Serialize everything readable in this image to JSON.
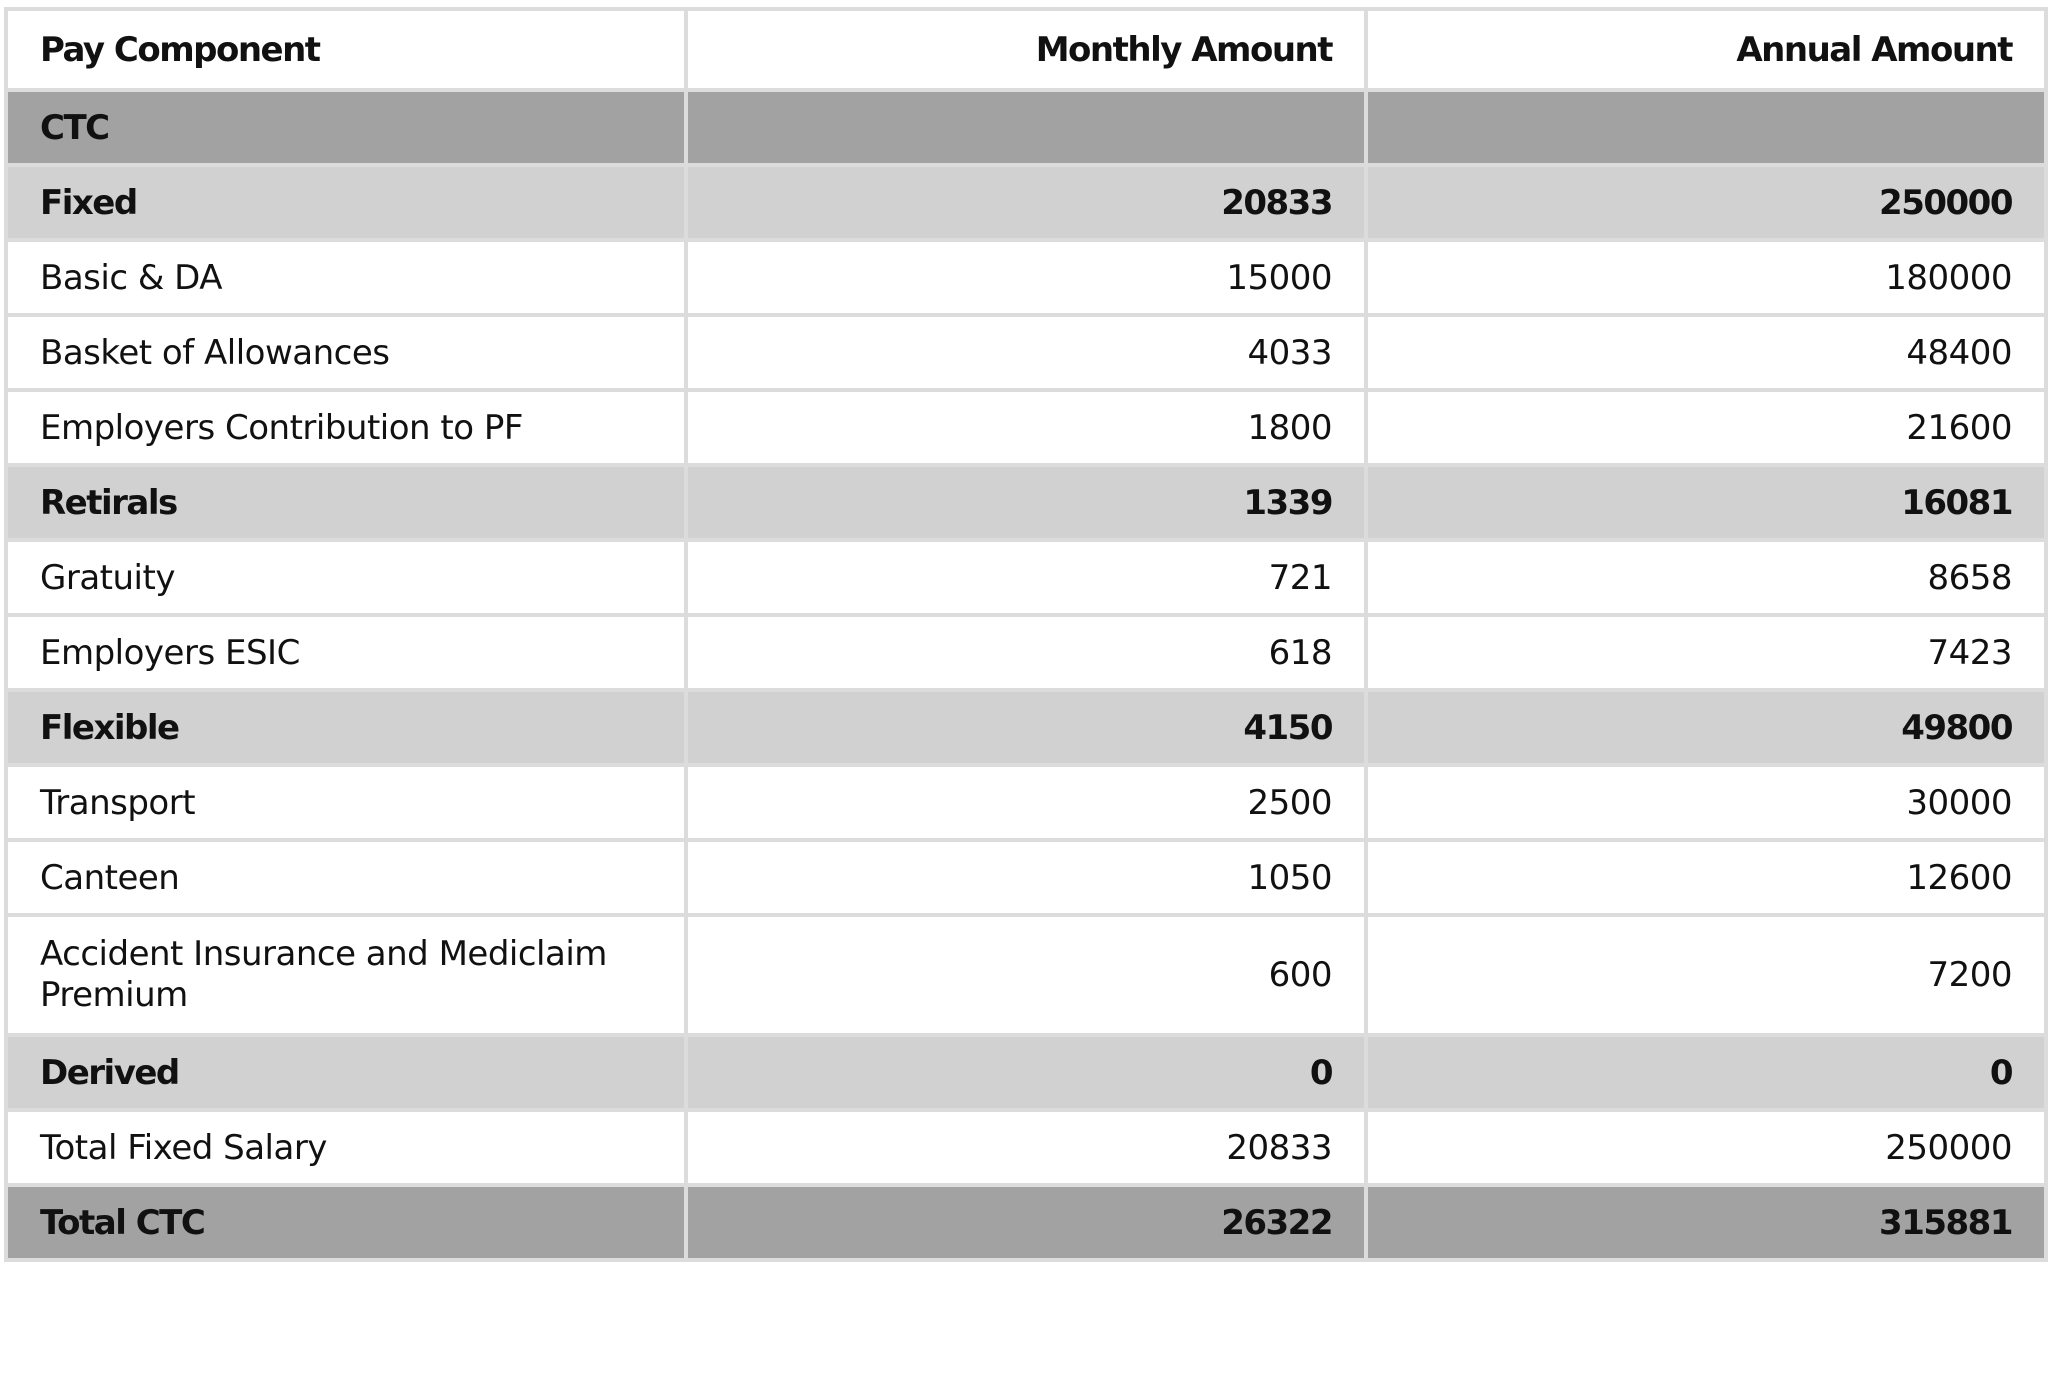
{
  "table": {
    "headers": [
      "Pay Component",
      "Monthly Amount",
      "Annual Amount"
    ],
    "rows": [
      {
        "label": "CTC",
        "monthly": "",
        "annual": "",
        "style": "head-dark"
      },
      {
        "label": "Fixed",
        "monthly": "20833",
        "annual": "250000",
        "style": "head-light"
      },
      {
        "label": "Basic & DA",
        "monthly": "15000",
        "annual": "180000",
        "style": "body"
      },
      {
        "label": "Basket of Allowances",
        "monthly": "4033",
        "annual": "48400",
        "style": "body"
      },
      {
        "label": "Employers Contribution to PF",
        "monthly": "1800",
        "annual": "21600",
        "style": "body"
      },
      {
        "label": "Retirals",
        "monthly": "1339",
        "annual": "16081",
        "style": "head-light"
      },
      {
        "label": "Gratuity",
        "monthly": "721",
        "annual": "8658",
        "style": "body"
      },
      {
        "label": "Employers ESIC",
        "monthly": "618",
        "annual": "7423",
        "style": "body"
      },
      {
        "label": "Flexible",
        "monthly": "4150",
        "annual": "49800",
        "style": "head-light"
      },
      {
        "label": "Transport",
        "monthly": "2500",
        "annual": "30000",
        "style": "body"
      },
      {
        "label": "Canteen",
        "monthly": "1050",
        "annual": "12600",
        "style": "body"
      },
      {
        "label": "Accident Insurance and Mediclaim Premium",
        "monthly": "600",
        "annual": "7200",
        "style": "body-tall"
      },
      {
        "label": "Derived",
        "monthly": "0",
        "annual": "0",
        "style": "head-light"
      },
      {
        "label": "Total Fixed Salary",
        "monthly": "20833",
        "annual": "250000",
        "style": "body"
      },
      {
        "label": "Total CTC",
        "monthly": "26322",
        "annual": "315881",
        "style": "head-dark"
      }
    ]
  },
  "colors": {
    "dark_row": "#a2a2a2",
    "light_row": "#d1d1d1",
    "grid": "#dcdcdc",
    "text": "#111111"
  }
}
